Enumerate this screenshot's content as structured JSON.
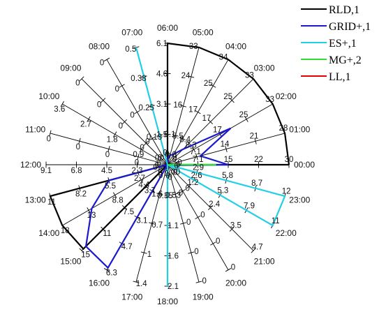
{
  "chart_data": {
    "type": "radar",
    "spokes": [
      {
        "hour": "00:00",
        "ticks": [
          "0",
          "7.1",
          "15",
          "22",
          "30"
        ]
      },
      {
        "hour": "01:00",
        "ticks": [
          "0",
          "7.1",
          "14",
          "21",
          "28"
        ]
      },
      {
        "hour": "02:00",
        "ticks": [
          "0",
          "8.3",
          "17",
          "25",
          "33"
        ]
      },
      {
        "hour": "03:00",
        "ticks": [
          "0",
          "8.4",
          "17",
          "25",
          "33"
        ]
      },
      {
        "hour": "04:00",
        "ticks": [
          "0",
          "8.5",
          "17",
          "25",
          "34"
        ]
      },
      {
        "hour": "05:00",
        "ticks": [
          "0",
          "8.1",
          "16",
          "24",
          "33"
        ]
      },
      {
        "hour": "06:00",
        "ticks": [
          "0",
          "1.5",
          "3.1",
          "4.6",
          "6.1"
        ]
      },
      {
        "hour": "07:00",
        "ticks": [
          "0",
          "0.13",
          "0.25",
          "0.38",
          "0.5"
        ]
      },
      {
        "hour": "08:00",
        "ticks": [
          "0",
          "0",
          "0",
          "0",
          "0"
        ]
      },
      {
        "hour": "09:00",
        "ticks": [
          "0",
          "0",
          "0",
          "0",
          "0"
        ]
      },
      {
        "hour": "10:00",
        "ticks": [
          "0",
          "0.9",
          "1.8",
          "2.7",
          "3.6"
        ]
      },
      {
        "hour": "11:00",
        "ticks": [
          "0",
          "0",
          "0",
          "0",
          "0"
        ]
      },
      {
        "hour": "12:00",
        "ticks": [
          "0",
          "2.3",
          "4.5",
          "6.8",
          "9.1"
        ]
      },
      {
        "hour": "13:00",
        "ticks": [
          "0",
          "2.7",
          "5.5",
          "8.2",
          "11"
        ]
      },
      {
        "hour": "14:00",
        "ticks": [
          "0",
          "4.4",
          "8.8",
          "13",
          "18"
        ]
      },
      {
        "hour": "15:00",
        "ticks": [
          "0",
          "3.7",
          "7.5",
          "11",
          "15"
        ]
      },
      {
        "hour": "16:00",
        "ticks": [
          "0",
          "1.6",
          "3.1",
          "4.7",
          "6.3"
        ]
      },
      {
        "hour": "17:00",
        "ticks": [
          "0",
          "0.35",
          "0.7",
          "1",
          "1.4"
        ]
      },
      {
        "hour": "18:00",
        "ticks": [
          "0",
          "0.53",
          "1.1",
          "1.6",
          "2.1"
        ]
      },
      {
        "hour": "19:00",
        "ticks": [
          "0",
          "0",
          "0",
          "0",
          "0"
        ]
      },
      {
        "hour": "20:00",
        "ticks": [
          "0",
          "0",
          "0",
          "0",
          "0"
        ]
      },
      {
        "hour": "21:00",
        "ticks": [
          "0",
          "1.2",
          "2.4",
          "3.5",
          "4.7"
        ]
      },
      {
        "hour": "22:00",
        "ticks": [
          "0",
          "2.6",
          "5.3",
          "7.9",
          "11"
        ]
      },
      {
        "hour": "23:00",
        "ticks": [
          "0",
          "2.9",
          "5.8",
          "8.7",
          "12"
        ]
      }
    ],
    "series": [
      {
        "name": "RLD,1",
        "color": "#000000",
        "values": [
          1,
          1,
          1,
          1,
          1,
          1,
          1,
          0,
          0,
          0,
          0,
          0,
          0,
          1,
          1,
          0.98,
          0,
          0,
          0,
          0,
          0,
          0,
          0,
          0
        ]
      },
      {
        "name": "GRID+,1",
        "color": "#1a1acc",
        "values": [
          0.5,
          0.28,
          0.6,
          0.18,
          0.1,
          0.08,
          0.05,
          0,
          0,
          0,
          0,
          0,
          0,
          0.5,
          0.72,
          0.95,
          0.98,
          0,
          0,
          0,
          0,
          0,
          0,
          0.02
        ]
      },
      {
        "name": "ES+,1",
        "color": "#22cfe6",
        "values": [
          0,
          0,
          0,
          0,
          0,
          0,
          0,
          1,
          0,
          0,
          0,
          0,
          0,
          0,
          0,
          0,
          0,
          0,
          1,
          0,
          0,
          0,
          1,
          1
        ]
      },
      {
        "name": "MG+,2",
        "color": "#33dd33",
        "values": [
          0.4,
          0,
          0,
          0,
          0,
          0,
          0,
          0,
          0,
          0,
          0,
          0,
          0,
          0,
          0,
          0,
          0,
          0,
          0,
          0,
          0,
          0,
          0,
          0
        ]
      },
      {
        "name": "LL,1",
        "color": "#e60000",
        "values": [
          0,
          0,
          0,
          0,
          0,
          0,
          0,
          0,
          0,
          0,
          0,
          0,
          0,
          0,
          0,
          0,
          0,
          0,
          0,
          0,
          0,
          0,
          0,
          0
        ]
      }
    ],
    "legend_position": "top-right"
  }
}
